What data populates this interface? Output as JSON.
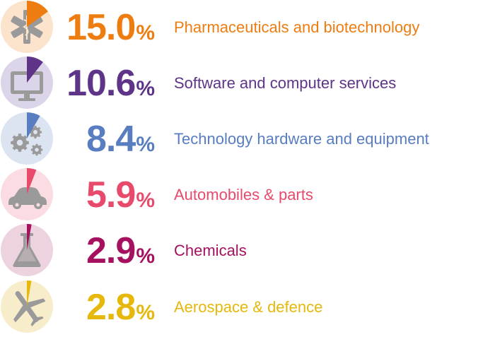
{
  "chart_data": {
    "type": "bar",
    "title": "",
    "unit": "%",
    "categories": [
      "Pharmaceuticals and biotechnology",
      "Software and computer services",
      "Technology hardware and equipment",
      "Automobiles & parts",
      "Chemicals",
      "Aerospace & defence"
    ],
    "values": [
      15.0,
      10.6,
      8.4,
      5.9,
      2.9,
      2.8
    ],
    "value_labels": [
      "15.0",
      "10.6",
      "8.4",
      "5.9",
      "2.9",
      "2.8"
    ]
  },
  "rows": [
    {
      "label": "Pharmaceuticals and biotechnology",
      "value_text": "15.0",
      "pct_symbol": "%",
      "icon": "medical-star-icon",
      "color": "#EE7D11",
      "bg": "#FBE3CC"
    },
    {
      "label": "Software and computer services",
      "value_text": "10.6",
      "pct_symbol": "%",
      "icon": "computer-monitor-icon",
      "color": "#5E3489",
      "bg": "#DCD4E8"
    },
    {
      "label": "Technology hardware and equipment",
      "value_text": "8.4",
      "pct_symbol": "%",
      "icon": "gears-icon",
      "color": "#587DC0",
      "bg": "#DCE3F1"
    },
    {
      "label": "Automobiles & parts",
      "value_text": "5.9",
      "pct_symbol": "%",
      "icon": "car-icon",
      "color": "#E74A6A",
      "bg": "#FBDCE2"
    },
    {
      "label": "Chemicals",
      "value_text": "2.9",
      "pct_symbol": "%",
      "icon": "flask-icon",
      "color": "#A5115E",
      "bg": "#EDD3DF"
    },
    {
      "label": "Aerospace & defence",
      "value_text": "2.8",
      "pct_symbol": "%",
      "icon": "airplane-icon",
      "color": "#E5B80B",
      "bg": "#F7EDCB"
    }
  ]
}
